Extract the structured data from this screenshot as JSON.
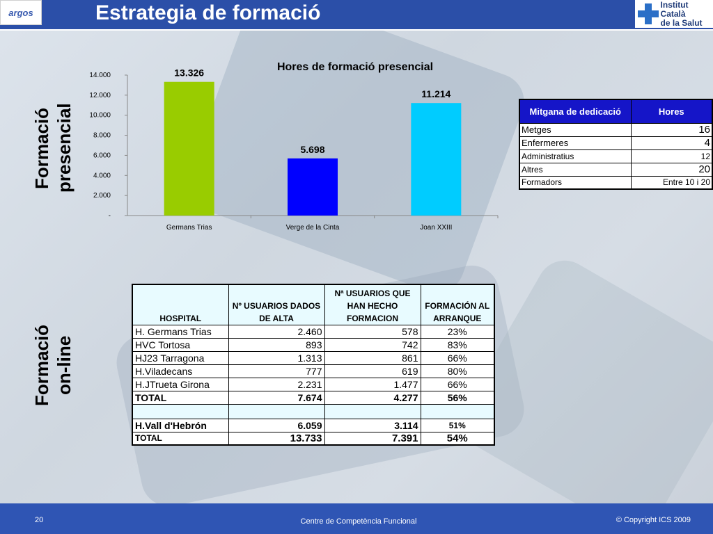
{
  "header": {
    "title": "Estrategia de formació",
    "logo_left": "argos",
    "logo_right_line1": "Institut Català",
    "logo_right_line2": "de la Salut"
  },
  "side_labels": {
    "presencial_line1": "Formació",
    "presencial_line2": "presencial",
    "online_line1": "Formació",
    "online_line2": "on-line"
  },
  "chart_data": {
    "type": "bar",
    "title": "Hores de formació presencial",
    "categories": [
      "Germans Trias",
      "Verge de la Cinta",
      "Joan XXIII"
    ],
    "values": [
      13326,
      5698,
      11214
    ],
    "value_labels": [
      "13.326",
      "5.698",
      "11.214"
    ],
    "colors": [
      "#99cc00",
      "#0000ff",
      "#00ccff"
    ],
    "ylim": [
      0,
      14000
    ],
    "yticks": [
      0,
      2000,
      4000,
      6000,
      8000,
      10000,
      12000,
      14000
    ],
    "ytick_labels": [
      "-",
      "2.000",
      "4.000",
      "6.000",
      "8.000",
      "10.000",
      "12.000",
      "14.000"
    ],
    "xlabel": "",
    "ylabel": "",
    "grid": false
  },
  "dedication_table": {
    "headers": [
      "Mitgana de dedicació",
      "Hores"
    ],
    "rows": [
      {
        "label": "Metges",
        "value": "16"
      },
      {
        "label": "Enfermeres",
        "value": "4"
      },
      {
        "label": "Administratius",
        "value": "12"
      },
      {
        "label": "Altres",
        "value": "20"
      },
      {
        "label": "Formadors",
        "value": "Entre 10 i 20"
      }
    ]
  },
  "online_table": {
    "headers": [
      "HOSPITAL",
      "Nº USUARIOS DADOS DE ALTA",
      "Nª USUARIOS QUE HAN HECHO FORMACION",
      "FORMACIÓN AL ARRANQUE"
    ],
    "rows": [
      [
        "H. Germans Trias",
        "2.460",
        "578",
        "23%"
      ],
      [
        "HVC Tortosa",
        "893",
        "742",
        "83%"
      ],
      [
        "HJ23 Tarragona",
        "1.313",
        "861",
        "66%"
      ],
      [
        "H.Viladecans",
        "777",
        "619",
        "80%"
      ],
      [
        "H.JTrueta Girona",
        "2.231",
        "1.477",
        "66%"
      ]
    ],
    "total": [
      "TOTAL",
      "7.674",
      "4.277",
      "56%"
    ],
    "vall": [
      "H.Vall d'Hebrón",
      "6.059",
      "3.114",
      "51%"
    ],
    "grand_total": [
      "TOTAL",
      "13.733",
      "7.391",
      "54%"
    ]
  },
  "footer": {
    "page": "20",
    "center": "Centre de Competència Funcional",
    "copyright": "© Copyright ICS 2009"
  }
}
